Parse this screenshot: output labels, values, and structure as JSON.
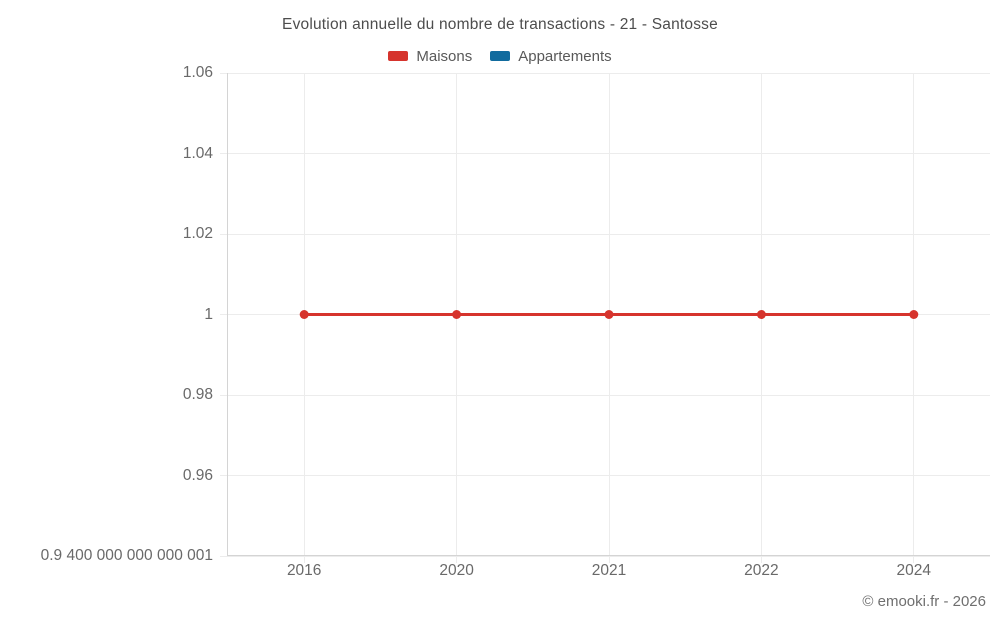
{
  "chart_data": {
    "type": "line",
    "title": "Evolution annuelle du nombre de transactions - 21 - Santosse",
    "categories": [
      "2016",
      "2020",
      "2021",
      "2022",
      "2024"
    ],
    "series": [
      {
        "name": "Maisons",
        "color": "#d6342d",
        "values": [
          1,
          1,
          1,
          1,
          1
        ]
      },
      {
        "name": "Appartements",
        "color": "#116b9e",
        "values": []
      }
    ],
    "ylim": [
      0.9400000000000001,
      1.06
    ],
    "y_ticks": [
      {
        "value": 1.06,
        "label": "1.06"
      },
      {
        "value": 1.04,
        "label": "1.04"
      },
      {
        "value": 1.02,
        "label": "1.02"
      },
      {
        "value": 1,
        "label": "1"
      },
      {
        "value": 0.98,
        "label": "0.98"
      },
      {
        "value": 0.96,
        "label": "0.96"
      },
      {
        "value": 0.9400000000000001,
        "label": "0.9 400 000 000 000 001"
      }
    ],
    "grid": true,
    "legend_position": "top",
    "xlabel": "",
    "ylabel": ""
  },
  "footer": {
    "credit": "© emooki.fr - 2026"
  },
  "colors": {
    "grid": "#ececec",
    "axis": "#d4d4d4",
    "tick_text": "#696969",
    "title_text": "#4d4d4d"
  }
}
